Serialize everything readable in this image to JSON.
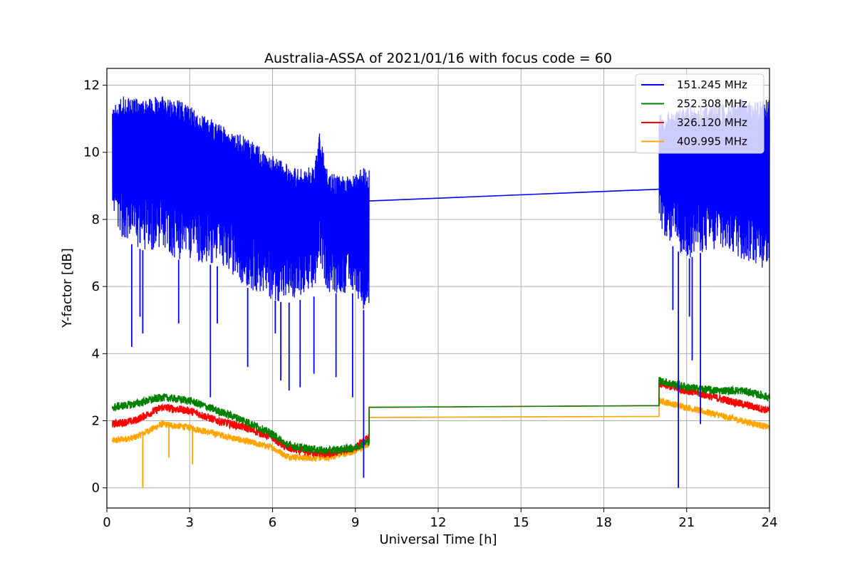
{
  "chart_data": {
    "type": "line",
    "title": "Australia-ASSA of 2021/01/16 with focus code = 60",
    "xlabel": "Universal Time [h]",
    "ylabel": "Y-factor [dB]",
    "xlim": [
      0,
      24
    ],
    "ylim": [
      -0.6,
      12.5
    ],
    "xticks": [
      0,
      3,
      6,
      9,
      12,
      15,
      18,
      21,
      24
    ],
    "yticks": [
      0,
      2,
      4,
      6,
      8,
      10,
      12
    ],
    "grid": true,
    "legend_position": "top-right",
    "series": [
      {
        "name": "151.245 MHz",
        "color": "#0000ff",
        "x": [
          0.2,
          0.5,
          1.0,
          1.5,
          2.0,
          2.5,
          3.0,
          3.5,
          4.0,
          4.5,
          5.0,
          5.5,
          6.0,
          6.5,
          7.0,
          7.5,
          7.7,
          8.0,
          8.5,
          9.0,
          9.3,
          9.5,
          20.0,
          20.2,
          20.5,
          21.0,
          21.5,
          22.0,
          22.5,
          23.0,
          23.5,
          24.0
        ],
        "upper": [
          11.3,
          11.7,
          11.6,
          11.6,
          11.7,
          11.6,
          11.4,
          11.1,
          10.9,
          10.6,
          10.5,
          10.2,
          9.9,
          9.7,
          9.5,
          9.6,
          10.6,
          9.4,
          9.3,
          9.3,
          9.6,
          9.5,
          11.2,
          11.2,
          11.2,
          11.4,
          11.4,
          11.5,
          11.4,
          11.6,
          11.5,
          11.6
        ],
        "lower": [
          8.2,
          7.5,
          7.2,
          7.0,
          7.2,
          6.8,
          6.8,
          6.7,
          6.6,
          6.4,
          6.0,
          5.8,
          5.6,
          5.5,
          5.6,
          5.7,
          6.8,
          5.8,
          5.8,
          5.8,
          5.3,
          5.3,
          7.8,
          7.5,
          7.2,
          6.8,
          7.0,
          7.0,
          7.0,
          6.8,
          6.6,
          6.5
        ],
        "gap_line": {
          "x": [
            9.5,
            20.0
          ],
          "y": [
            8.55,
            8.9
          ]
        },
        "dips": [
          {
            "x": 0.9,
            "y": 4.2
          },
          {
            "x": 1.2,
            "y": 5.1
          },
          {
            "x": 1.3,
            "y": 4.6
          },
          {
            "x": 2.6,
            "y": 4.9
          },
          {
            "x": 3.75,
            "y": 2.7
          },
          {
            "x": 4.0,
            "y": 4.9
          },
          {
            "x": 5.1,
            "y": 3.6
          },
          {
            "x": 6.1,
            "y": 4.6
          },
          {
            "x": 6.3,
            "y": 3.2
          },
          {
            "x": 6.6,
            "y": 2.9
          },
          {
            "x": 7.0,
            "y": 3.0
          },
          {
            "x": 7.5,
            "y": 3.4
          },
          {
            "x": 8.3,
            "y": 3.3
          },
          {
            "x": 8.9,
            "y": 2.7
          },
          {
            "x": 9.3,
            "y": 0.3
          },
          {
            "x": 20.5,
            "y": 5.3
          },
          {
            "x": 20.7,
            "y": 0.0
          },
          {
            "x": 21.2,
            "y": 3.8
          },
          {
            "x": 21.5,
            "y": 1.9
          },
          {
            "x": 21.1,
            "y": 5.1
          }
        ]
      },
      {
        "name": "252.308 MHz",
        "color": "#008000",
        "x": [
          0.2,
          1.0,
          2.0,
          3.0,
          4.0,
          5.0,
          6.0,
          6.5,
          7.0,
          8.0,
          9.0,
          9.5,
          9.5,
          20.0,
          20.0,
          21.0,
          22.0,
          23.0,
          24.0
        ],
        "y": [
          2.4,
          2.5,
          2.7,
          2.6,
          2.3,
          2.0,
          1.6,
          1.3,
          1.2,
          1.1,
          1.2,
          1.4,
          2.4,
          2.45,
          3.2,
          3.0,
          2.9,
          2.9,
          2.7
        ],
        "noise": 0.12
      },
      {
        "name": "326.120 MHz",
        "color": "#ff0000",
        "x": [
          0.2,
          1.0,
          2.0,
          3.0,
          4.0,
          5.0,
          6.0,
          6.5,
          7.0,
          8.0,
          9.0,
          9.5,
          9.5,
          20.0,
          20.0,
          21.0,
          22.0,
          23.0,
          24.0
        ],
        "y": [
          1.9,
          2.0,
          2.4,
          2.3,
          2.0,
          1.8,
          1.5,
          1.2,
          1.1,
          1.0,
          1.2,
          1.5,
          2.4,
          2.45,
          3.1,
          2.9,
          2.7,
          2.5,
          2.3
        ],
        "noise": 0.12
      },
      {
        "name": "409.995 MHz",
        "color": "#ffa500",
        "x": [
          0.2,
          1.0,
          2.0,
          3.0,
          4.0,
          5.0,
          6.0,
          6.5,
          7.0,
          8.0,
          9.0,
          9.5,
          9.5,
          20.0,
          20.0,
          21.0,
          22.0,
          23.0,
          24.0
        ],
        "y": [
          1.4,
          1.5,
          1.9,
          1.8,
          1.6,
          1.4,
          1.2,
          0.95,
          0.9,
          0.9,
          1.1,
          1.3,
          2.1,
          2.13,
          2.6,
          2.4,
          2.2,
          2.0,
          1.8
        ],
        "noise": 0.1,
        "spikes": [
          {
            "x": 1.3,
            "y": 0.0
          },
          {
            "x": 2.25,
            "y": 0.9
          },
          {
            "x": 3.1,
            "y": 0.7
          }
        ]
      }
    ]
  }
}
